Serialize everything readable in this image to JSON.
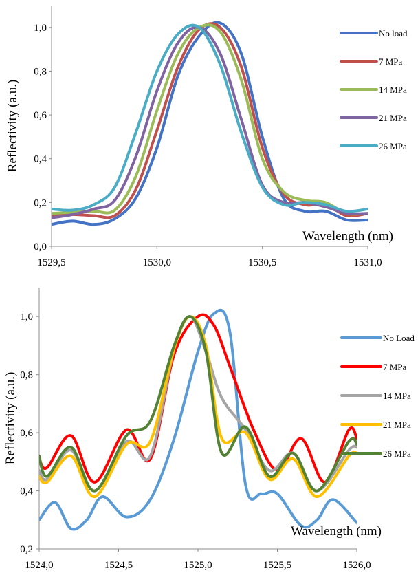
{
  "chart_data": [
    {
      "type": "line",
      "ylabel": "Reflectivity (a.u.)",
      "xlabel": "Wavelength (nm)",
      "xlim": [
        1529.5,
        1531.0
      ],
      "ylim": [
        0.0,
        1.1
      ],
      "x_ticks": [
        "1529,5",
        "1530,0",
        "1530,5",
        "1531,0"
      ],
      "y_ticks": [
        "0,0",
        "0,2",
        "0,4",
        "0,6",
        "0,8",
        "1,0"
      ],
      "x_tick_values": [
        1529.5,
        1530.0,
        1530.5,
        1531.0
      ],
      "y_tick_values": [
        0.0,
        0.2,
        0.4,
        0.6,
        0.8,
        1.0
      ],
      "legend_position": "right",
      "grid": false,
      "series": [
        {
          "name": "No load",
          "color": "#4472C4",
          "points": [
            [
              1529.5,
              0.1
            ],
            [
              1529.6,
              0.115
            ],
            [
              1529.7,
              0.1
            ],
            [
              1529.8,
              0.125
            ],
            [
              1529.9,
              0.22
            ],
            [
              1530.0,
              0.45
            ],
            [
              1530.1,
              0.78
            ],
            [
              1530.2,
              0.96
            ],
            [
              1530.3,
              1.02
            ],
            [
              1530.4,
              0.88
            ],
            [
              1530.5,
              0.5
            ],
            [
              1530.6,
              0.22
            ],
            [
              1530.7,
              0.16
            ],
            [
              1530.8,
              0.16
            ],
            [
              1530.9,
              0.12
            ],
            [
              1531.0,
              0.12
            ]
          ]
        },
        {
          "name": "7 MPa",
          "color": "#C0504D",
          "points": [
            [
              1529.5,
              0.14
            ],
            [
              1529.6,
              0.145
            ],
            [
              1529.7,
              0.14
            ],
            [
              1529.8,
              0.14
            ],
            [
              1529.9,
              0.26
            ],
            [
              1530.0,
              0.53
            ],
            [
              1530.1,
              0.82
            ],
            [
              1530.2,
              0.99
            ],
            [
              1530.3,
              1.0
            ],
            [
              1530.4,
              0.82
            ],
            [
              1530.5,
              0.45
            ],
            [
              1530.6,
              0.24
            ],
            [
              1530.7,
              0.19
            ],
            [
              1530.8,
              0.19
            ],
            [
              1530.9,
              0.14
            ],
            [
              1531.0,
              0.15
            ]
          ]
        },
        {
          "name": "14  MPa",
          "color": "#9BBB59",
          "points": [
            [
              1529.5,
              0.15
            ],
            [
              1529.6,
              0.155
            ],
            [
              1529.7,
              0.16
            ],
            [
              1529.8,
              0.165
            ],
            [
              1529.9,
              0.32
            ],
            [
              1530.0,
              0.62
            ],
            [
              1530.1,
              0.88
            ],
            [
              1530.2,
              1.0
            ],
            [
              1530.3,
              0.98
            ],
            [
              1530.4,
              0.76
            ],
            [
              1530.5,
              0.4
            ],
            [
              1530.6,
              0.25
            ],
            [
              1530.7,
              0.21
            ],
            [
              1530.8,
              0.2
            ],
            [
              1530.9,
              0.15
            ],
            [
              1531.0,
              0.15
            ]
          ]
        },
        {
          "name": "21 MPa",
          "color": "#8064A2",
          "points": [
            [
              1529.5,
              0.13
            ],
            [
              1529.6,
              0.145
            ],
            [
              1529.7,
              0.17
            ],
            [
              1529.8,
              0.21
            ],
            [
              1529.9,
              0.41
            ],
            [
              1530.0,
              0.71
            ],
            [
              1530.1,
              0.93
            ],
            [
              1530.2,
              1.0
            ],
            [
              1530.3,
              0.88
            ],
            [
              1530.4,
              0.58
            ],
            [
              1530.5,
              0.28
            ],
            [
              1530.6,
              0.2
            ],
            [
              1530.7,
              0.2
            ],
            [
              1530.8,
              0.18
            ],
            [
              1530.9,
              0.15
            ],
            [
              1531.0,
              0.15
            ]
          ]
        },
        {
          "name": "26 MPa",
          "color": "#4BACC6",
          "points": [
            [
              1529.5,
              0.17
            ],
            [
              1529.6,
              0.165
            ],
            [
              1529.7,
              0.19
            ],
            [
              1529.8,
              0.27
            ],
            [
              1529.9,
              0.52
            ],
            [
              1530.0,
              0.8
            ],
            [
              1530.1,
              0.97
            ],
            [
              1530.2,
              1.0
            ],
            [
              1530.3,
              0.83
            ],
            [
              1530.4,
              0.52
            ],
            [
              1530.5,
              0.27
            ],
            [
              1530.6,
              0.19
            ],
            [
              1530.7,
              0.2
            ],
            [
              1530.8,
              0.19
            ],
            [
              1530.9,
              0.16
            ],
            [
              1531.0,
              0.17
            ]
          ]
        }
      ]
    },
    {
      "type": "line",
      "ylabel": "Reflectivity (a.u.)",
      "xlabel": "Wavelength (nm)",
      "xlim": [
        1524.0,
        1526.0
      ],
      "ylim": [
        0.2,
        1.1
      ],
      "x_ticks": [
        "1524,0",
        "1524,5",
        "1525,0",
        "1525,5",
        "1526,0"
      ],
      "y_ticks": [
        "0,2",
        "0,4",
        "0,6",
        "0,8",
        "1,0"
      ],
      "x_tick_values": [
        1524.0,
        1524.5,
        1525.0,
        1525.5,
        1526.0
      ],
      "y_tick_values": [
        0.2,
        0.4,
        0.6,
        0.8,
        1.0
      ],
      "legend_position": "right",
      "grid": false,
      "series": [
        {
          "name": "No Load",
          "color": "#5B9BD5",
          "points": [
            [
              1524.0,
              0.3
            ],
            [
              1524.1,
              0.36
            ],
            [
              1524.2,
              0.27
            ],
            [
              1524.3,
              0.3
            ],
            [
              1524.4,
              0.38
            ],
            [
              1524.55,
              0.31
            ],
            [
              1524.7,
              0.37
            ],
            [
              1524.85,
              0.58
            ],
            [
              1525.0,
              0.88
            ],
            [
              1525.1,
              1.01
            ],
            [
              1525.2,
              0.95
            ],
            [
              1525.3,
              0.42
            ],
            [
              1525.4,
              0.39
            ],
            [
              1525.5,
              0.39
            ],
            [
              1525.65,
              0.28
            ],
            [
              1525.75,
              0.3
            ],
            [
              1525.85,
              0.37
            ],
            [
              1526.0,
              0.29
            ]
          ]
        },
        {
          "name": "7 MPa",
          "color": "#FF0000",
          "points": [
            [
              1524.0,
              0.51
            ],
            [
              1524.05,
              0.48
            ],
            [
              1524.2,
              0.59
            ],
            [
              1524.35,
              0.43
            ],
            [
              1524.55,
              0.61
            ],
            [
              1524.7,
              0.51
            ],
            [
              1524.85,
              0.87
            ],
            [
              1525.0,
              1.0
            ],
            [
              1525.1,
              0.97
            ],
            [
              1525.2,
              0.83
            ],
            [
              1525.35,
              0.61
            ],
            [
              1525.5,
              0.47
            ],
            [
              1525.65,
              0.58
            ],
            [
              1525.8,
              0.43
            ],
            [
              1525.95,
              0.61
            ],
            [
              1526.0,
              0.58
            ]
          ]
        },
        {
          "name": "14 MPa",
          "color": "#A5A5A5",
          "points": [
            [
              1524.0,
              0.47
            ],
            [
              1524.05,
              0.44
            ],
            [
              1524.2,
              0.54
            ],
            [
              1524.35,
              0.4
            ],
            [
              1524.55,
              0.57
            ],
            [
              1524.7,
              0.52
            ],
            [
              1524.85,
              0.89
            ],
            [
              1524.95,
              1.0
            ],
            [
              1525.05,
              0.88
            ],
            [
              1525.15,
              0.72
            ],
            [
              1525.3,
              0.61
            ],
            [
              1525.45,
              0.47
            ],
            [
              1525.6,
              0.53
            ],
            [
              1525.75,
              0.4
            ],
            [
              1525.95,
              0.54
            ],
            [
              1526.0,
              0.55
            ]
          ]
        },
        {
          "name": "21 MPa",
          "color": "#FFC000",
          "points": [
            [
              1524.0,
              0.45
            ],
            [
              1524.05,
              0.43
            ],
            [
              1524.2,
              0.52
            ],
            [
              1524.35,
              0.38
            ],
            [
              1524.55,
              0.56
            ],
            [
              1524.7,
              0.57
            ],
            [
              1524.85,
              0.89
            ],
            [
              1524.95,
              1.0
            ],
            [
              1525.05,
              0.9
            ],
            [
              1525.15,
              0.58
            ],
            [
              1525.3,
              0.6
            ],
            [
              1525.45,
              0.44
            ],
            [
              1525.6,
              0.51
            ],
            [
              1525.75,
              0.38
            ],
            [
              1525.95,
              0.52
            ],
            [
              1526.0,
              0.53
            ]
          ]
        },
        {
          "name": "26 MPa",
          "color": "#548235",
          "points": [
            [
              1524.0,
              0.52
            ],
            [
              1524.05,
              0.45
            ],
            [
              1524.2,
              0.55
            ],
            [
              1524.35,
              0.4
            ],
            [
              1524.55,
              0.59
            ],
            [
              1524.7,
              0.64
            ],
            [
              1524.85,
              0.9
            ],
            [
              1524.95,
              1.0
            ],
            [
              1525.05,
              0.88
            ],
            [
              1525.15,
              0.53
            ],
            [
              1525.3,
              0.62
            ],
            [
              1525.45,
              0.45
            ],
            [
              1525.6,
              0.53
            ],
            [
              1525.75,
              0.4
            ],
            [
              1525.95,
              0.57
            ],
            [
              1526.0,
              0.56
            ]
          ]
        }
      ]
    }
  ]
}
